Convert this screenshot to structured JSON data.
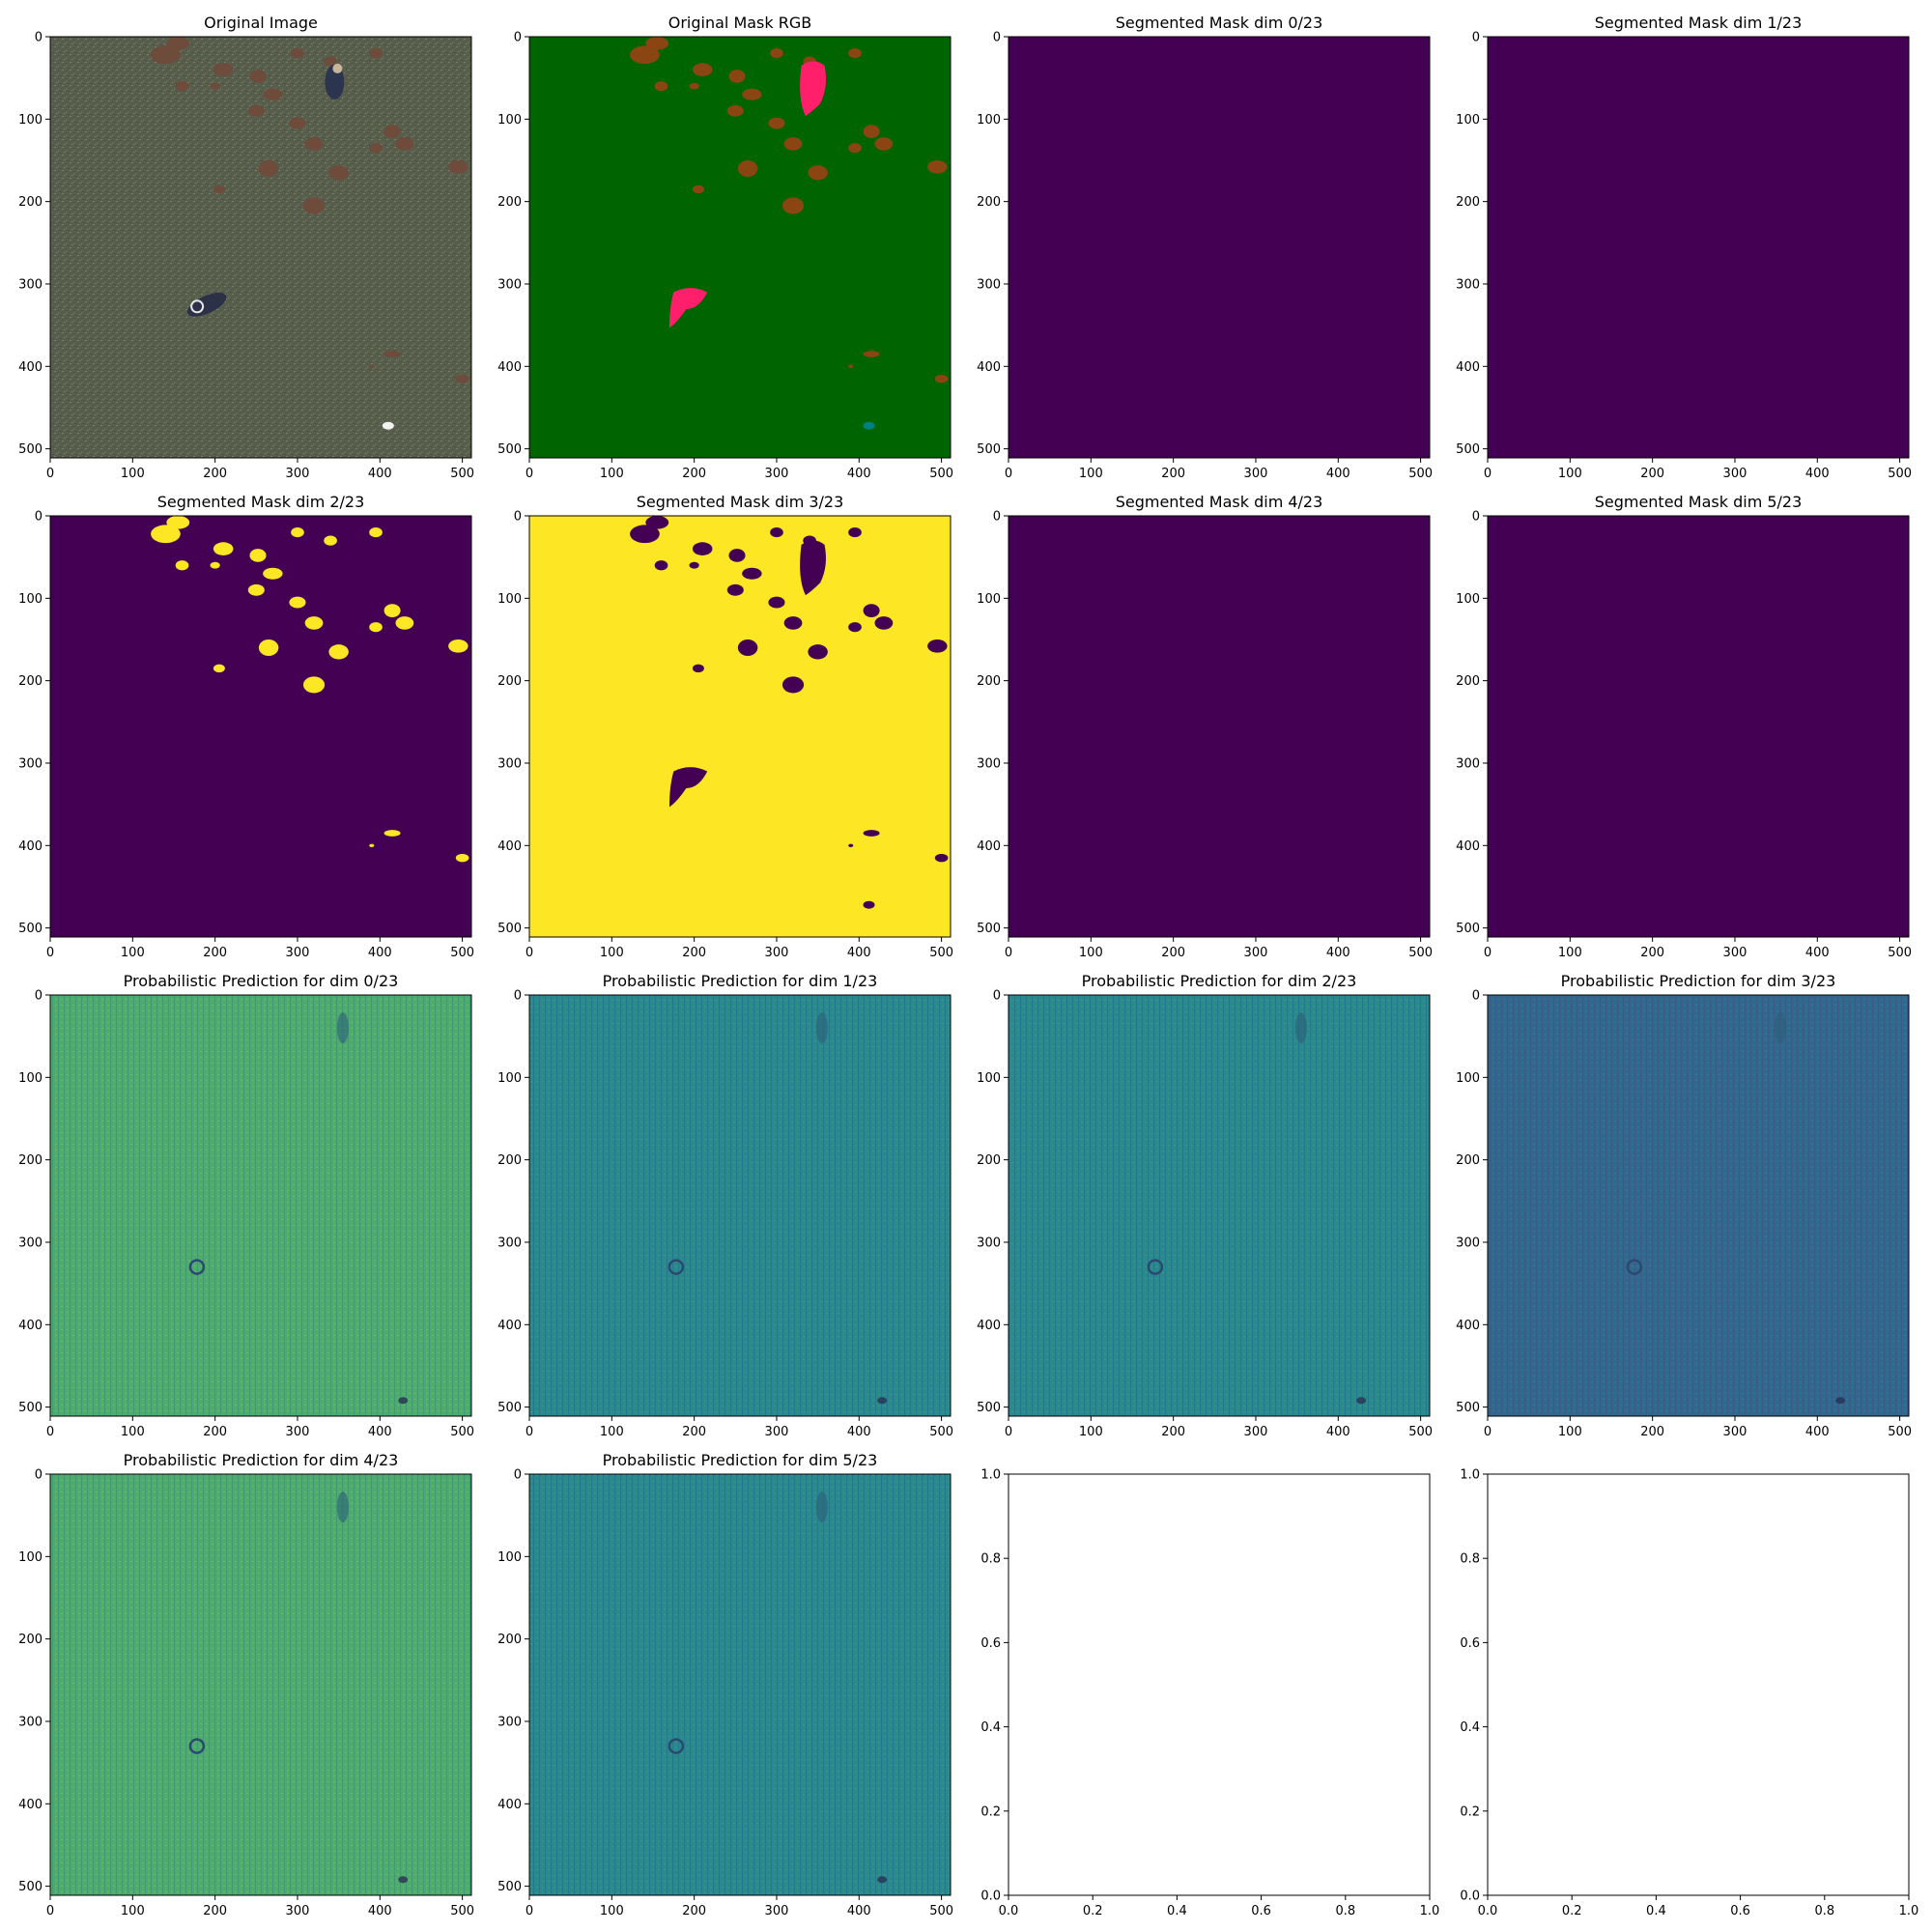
{
  "colors": {
    "viridis_low": "#440154",
    "viridis_high": "#fde725",
    "grass": "#585e4c",
    "mask_green": "#006400",
    "mask_brown": "#8b4513",
    "mask_pink": "#ff1f6b",
    "mask_teal": "#008080",
    "pred_teal": "#31908c",
    "pred_green": "#56b06a",
    "pred_blue": "#35628a"
  },
  "chart_data": [
    {
      "type": "image",
      "title": "Original Image",
      "render": "photo",
      "xlim": [
        0,
        511
      ],
      "ylim": [
        511,
        0
      ],
      "xticks": [
        "0",
        "100",
        "200",
        "300",
        "400",
        "500"
      ],
      "yticks": [
        "0",
        "100",
        "200",
        "300",
        "400",
        "500"
      ]
    },
    {
      "type": "image",
      "title": "Original Mask RGB",
      "render": "mask_rgb",
      "xlim": [
        0,
        511
      ],
      "ylim": [
        511,
        0
      ],
      "xticks": [
        "0",
        "100",
        "200",
        "300",
        "400",
        "500"
      ],
      "yticks": [
        "0",
        "100",
        "200",
        "300",
        "400",
        "500"
      ]
    },
    {
      "type": "heatmap",
      "title": "Segmented Mask dim 0/23",
      "render": "flat",
      "xlim": [
        0,
        511
      ],
      "ylim": [
        511,
        0
      ],
      "xticks": [
        "0",
        "100",
        "200",
        "300",
        "400",
        "500"
      ],
      "yticks": [
        "0",
        "100",
        "200",
        "300",
        "400",
        "500"
      ]
    },
    {
      "type": "heatmap",
      "title": "Segmented Mask dim 1/23",
      "render": "flat",
      "xlim": [
        0,
        511
      ],
      "ylim": [
        511,
        0
      ],
      "xticks": [
        "0",
        "100",
        "200",
        "300",
        "400",
        "500"
      ],
      "yticks": [
        "0",
        "100",
        "200",
        "300",
        "400",
        "500"
      ]
    },
    {
      "type": "heatmap",
      "title": "Segmented Mask dim 2/23",
      "render": "mask_dim2",
      "xlim": [
        0,
        511
      ],
      "ylim": [
        511,
        0
      ],
      "xticks": [
        "0",
        "100",
        "200",
        "300",
        "400",
        "500"
      ],
      "yticks": [
        "0",
        "100",
        "200",
        "300",
        "400",
        "500"
      ]
    },
    {
      "type": "heatmap",
      "title": "Segmented Mask dim 3/23",
      "render": "mask_dim3",
      "xlim": [
        0,
        511
      ],
      "ylim": [
        511,
        0
      ],
      "xticks": [
        "0",
        "100",
        "200",
        "300",
        "400",
        "500"
      ],
      "yticks": [
        "0",
        "100",
        "200",
        "300",
        "400",
        "500"
      ]
    },
    {
      "type": "heatmap",
      "title": "Segmented Mask dim 4/23",
      "render": "flat",
      "xlim": [
        0,
        511
      ],
      "ylim": [
        511,
        0
      ],
      "xticks": [
        "0",
        "100",
        "200",
        "300",
        "400",
        "500"
      ],
      "yticks": [
        "0",
        "100",
        "200",
        "300",
        "400",
        "500"
      ]
    },
    {
      "type": "heatmap",
      "title": "Segmented Mask dim 5/23",
      "render": "flat",
      "xlim": [
        0,
        511
      ],
      "ylim": [
        511,
        0
      ],
      "xticks": [
        "0",
        "100",
        "200",
        "300",
        "400",
        "500"
      ],
      "yticks": [
        "0",
        "100",
        "200",
        "300",
        "400",
        "500"
      ]
    },
    {
      "type": "heatmap",
      "title": "Probabilistic Prediction for dim 0/23",
      "render": "pred",
      "tone": "pred_green",
      "xlim": [
        0,
        511
      ],
      "ylim": [
        511,
        0
      ],
      "xticks": [
        "0",
        "100",
        "200",
        "300",
        "400",
        "500"
      ],
      "yticks": [
        "0",
        "100",
        "200",
        "300",
        "400",
        "500"
      ]
    },
    {
      "type": "heatmap",
      "title": "Probabilistic Prediction for dim 1/23",
      "render": "pred",
      "tone": "pred_teal",
      "xlim": [
        0,
        511
      ],
      "ylim": [
        511,
        0
      ],
      "xticks": [
        "0",
        "100",
        "200",
        "300",
        "400",
        "500"
      ],
      "yticks": [
        "0",
        "100",
        "200",
        "300",
        "400",
        "500"
      ]
    },
    {
      "type": "heatmap",
      "title": "Probabilistic Prediction for dim 2/23",
      "render": "pred",
      "tone": "pred_teal",
      "xlim": [
        0,
        511
      ],
      "ylim": [
        511,
        0
      ],
      "xticks": [
        "0",
        "100",
        "200",
        "300",
        "400",
        "500"
      ],
      "yticks": [
        "0",
        "100",
        "200",
        "300",
        "400",
        "500"
      ]
    },
    {
      "type": "heatmap",
      "title": "Probabilistic Prediction for dim 3/23",
      "render": "pred",
      "tone": "pred_blue",
      "xlim": [
        0,
        511
      ],
      "ylim": [
        511,
        0
      ],
      "xticks": [
        "0",
        "100",
        "200",
        "300",
        "400",
        "500"
      ],
      "yticks": [
        "0",
        "100",
        "200",
        "300",
        "400",
        "500"
      ]
    },
    {
      "type": "heatmap",
      "title": "Probabilistic Prediction for dim 4/23",
      "render": "pred",
      "tone": "pred_green",
      "xlim": [
        0,
        511
      ],
      "ylim": [
        511,
        0
      ],
      "xticks": [
        "0",
        "100",
        "200",
        "300",
        "400",
        "500"
      ],
      "yticks": [
        "0",
        "100",
        "200",
        "300",
        "400",
        "500"
      ]
    },
    {
      "type": "heatmap",
      "title": "Probabilistic Prediction for dim 5/23",
      "render": "pred",
      "tone": "pred_teal",
      "xlim": [
        0,
        511
      ],
      "ylim": [
        511,
        0
      ],
      "xticks": [
        "0",
        "100",
        "200",
        "300",
        "400",
        "500"
      ],
      "yticks": [
        "0",
        "100",
        "200",
        "300",
        "400",
        "500"
      ]
    },
    {
      "type": "empty",
      "title": "",
      "render": "empty",
      "xlim": [
        0,
        1
      ],
      "ylim": [
        0,
        1
      ],
      "xticks": [
        "0.0",
        "0.2",
        "0.4",
        "0.6",
        "0.8",
        "1.0"
      ],
      "yticks": [
        "0.0",
        "0.2",
        "0.4",
        "0.6",
        "0.8",
        "1.0"
      ]
    },
    {
      "type": "empty",
      "title": "",
      "render": "empty",
      "xlim": [
        0,
        1
      ],
      "ylim": [
        0,
        1
      ],
      "xticks": [
        "0.0",
        "0.2",
        "0.4",
        "0.6",
        "0.8",
        "1.0"
      ],
      "yticks": [
        "0.0",
        "0.2",
        "0.4",
        "0.6",
        "0.8",
        "1.0"
      ]
    }
  ]
}
